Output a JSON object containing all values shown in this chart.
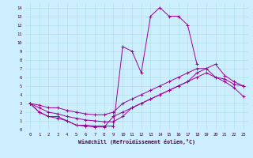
{
  "xlabel": "Windchill (Refroidissement éolien,°C)",
  "bg_color": "#cceeff",
  "line_color": "#990099",
  "xlim": [
    -0.5,
    23.5
  ],
  "ylim": [
    0,
    14.5
  ],
  "xticks": [
    0,
    1,
    2,
    3,
    4,
    5,
    6,
    7,
    8,
    9,
    10,
    11,
    12,
    13,
    14,
    15,
    16,
    17,
    18,
    19,
    20,
    21,
    22,
    23
  ],
  "yticks": [
    0,
    1,
    2,
    3,
    4,
    5,
    6,
    7,
    8,
    9,
    10,
    11,
    12,
    13,
    14
  ],
  "curves": [
    {
      "x": [
        0,
        1,
        2,
        3,
        4,
        5,
        6,
        7,
        8,
        9,
        10,
        11,
        12,
        13,
        14,
        15,
        16,
        17,
        18
      ],
      "y": [
        3,
        2,
        1.5,
        1.5,
        1,
        0.5,
        0.5,
        0.4,
        0.4,
        0.4,
        9.5,
        9,
        6.5,
        13,
        14,
        13,
        13,
        12,
        7.5
      ]
    },
    {
      "x": [
        0,
        1,
        2,
        3,
        4,
        5,
        6,
        7,
        8,
        9,
        10,
        11,
        12,
        13,
        14,
        15,
        16,
        17,
        18,
        19,
        20,
        21,
        22,
        23
      ],
      "y": [
        3,
        2.8,
        2.5,
        2.5,
        2.2,
        2,
        1.8,
        1.7,
        1.7,
        2,
        3,
        3.5,
        4,
        4.5,
        5,
        5.5,
        6,
        6.5,
        7,
        7,
        6,
        5.8,
        5.2,
        5
      ]
    },
    {
      "x": [
        0,
        1,
        2,
        3,
        4,
        5,
        6,
        7,
        8,
        9,
        10,
        11,
        12,
        13,
        14,
        15,
        16,
        17,
        18,
        19,
        20,
        21,
        22,
        23
      ],
      "y": [
        3,
        2.5,
        2,
        1.8,
        1.5,
        1.3,
        1.1,
        1,
        0.9,
        0.9,
        1.5,
        2.5,
        3,
        3.5,
        4,
        4.5,
        5,
        5.5,
        6.5,
        7,
        7.5,
        6.2,
        5.5,
        5
      ]
    },
    {
      "x": [
        0,
        1,
        2,
        3,
        4,
        5,
        6,
        7,
        8,
        9,
        10,
        11,
        12,
        13,
        14,
        15,
        16,
        17,
        18,
        19,
        20,
        21,
        22,
        23
      ],
      "y": [
        3,
        2,
        1.5,
        1.3,
        1,
        0.5,
        0.4,
        0.3,
        0.3,
        1.5,
        2,
        2.5,
        3,
        3.5,
        4,
        4.5,
        5,
        5.5,
        6,
        6.5,
        6,
        5.5,
        4.8,
        3.8
      ]
    }
  ]
}
